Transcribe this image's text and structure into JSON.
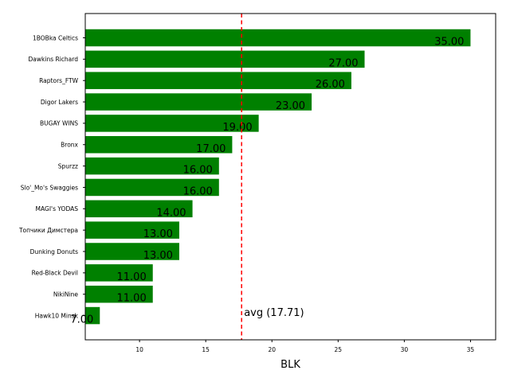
{
  "chart_data": {
    "type": "bar",
    "orientation": "horizontal",
    "categories": [
      "1BOBka Celtics",
      "Dawkins Richard",
      "Raptors_FTW",
      "Digor Lakers",
      "BUGAY WINS",
      "Bronx",
      "Spurzz",
      "Slo'_Mo's Swaggies",
      "MAGI's YODAS",
      "Топчики Димстера",
      "Dunking Donuts",
      "Red-Black Devil",
      "NikiNine",
      "Hawk10 Minsk"
    ],
    "values": [
      35,
      27,
      26,
      23,
      19,
      17,
      16,
      16,
      14,
      13,
      13,
      11,
      11,
      7
    ],
    "value_labels": [
      "35.00",
      "27.00",
      "26.00",
      "23.00",
      "19.00",
      "17.00",
      "16.00",
      "16.00",
      "14.00",
      "13.00",
      "13.00",
      "11.00",
      "11.00",
      "7.00"
    ],
    "bar_color": "#008000",
    "xlabel": "BLK",
    "ylabel": "",
    "title": "",
    "xlim": [
      5.9,
      36.9
    ],
    "xticks": [
      10,
      15,
      20,
      25,
      30,
      35
    ],
    "xtick_labels": [
      "10",
      "15",
      "20",
      "25",
      "30",
      "35"
    ],
    "grid": false,
    "reference_line": {
      "value": 17.71,
      "label": "avg (17.71)",
      "color": "#ff0000",
      "style": "dashed"
    }
  }
}
